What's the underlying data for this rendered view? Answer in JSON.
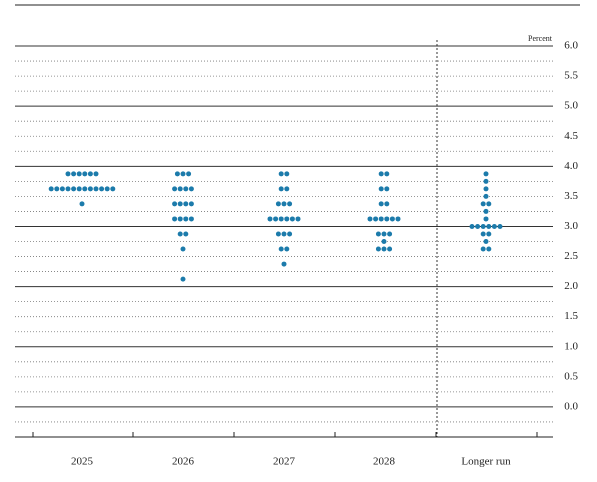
{
  "chart_data": {
    "type": "dotplot",
    "y_unit_label": "Percent",
    "categories": [
      "2025",
      "2026",
      "2027",
      "2028",
      "Longer run"
    ],
    "color": "#1c7bab",
    "values": [
      [
        3.875,
        3.875,
        3.875,
        3.875,
        3.875,
        3.875,
        3.625,
        3.625,
        3.625,
        3.625,
        3.625,
        3.625,
        3.625,
        3.625,
        3.625,
        3.625,
        3.625,
        3.625,
        3.375
      ],
      [
        3.875,
        3.875,
        3.875,
        3.625,
        3.625,
        3.625,
        3.625,
        3.375,
        3.375,
        3.375,
        3.375,
        3.125,
        3.125,
        3.125,
        3.125,
        2.875,
        2.875,
        2.625,
        2.125
      ],
      [
        3.875,
        3.875,
        3.625,
        3.625,
        3.375,
        3.375,
        3.375,
        3.125,
        3.125,
        3.125,
        3.125,
        3.125,
        3.125,
        2.875,
        2.875,
        2.875,
        2.625,
        2.625,
        2.375
      ],
      [
        3.875,
        3.875,
        3.625,
        3.625,
        3.375,
        3.375,
        3.125,
        3.125,
        3.125,
        3.125,
        3.125,
        3.125,
        2.875,
        2.875,
        2.875,
        2.75,
        2.625,
        2.625,
        2.625
      ],
      [
        3.875,
        3.75,
        3.625,
        3.5,
        3.375,
        3.375,
        3.25,
        3.125,
        3,
        3,
        3,
        3,
        3,
        3,
        2.875,
        2.875,
        2.75,
        2.625,
        2.625
      ]
    ],
    "ylim": [
      -0.5,
      6.1
    ],
    "yticks": [
      {
        "value": 0,
        "label": "0.0"
      },
      {
        "value": 0.5,
        "label": "0.5"
      },
      {
        "value": 1,
        "label": "1.0"
      },
      {
        "value": 1.5,
        "label": "1.5"
      },
      {
        "value": 2,
        "label": "2.0"
      },
      {
        "value": 2.5,
        "label": "2.5"
      },
      {
        "value": 3,
        "label": "3.0"
      },
      {
        "value": 3.5,
        "label": "3.5"
      },
      {
        "value": 4,
        "label": "4.0"
      },
      {
        "value": 4.5,
        "label": "4.5"
      },
      {
        "value": 5,
        "label": "5.0"
      },
      {
        "value": 5.5,
        "label": "5.5"
      },
      {
        "value": 6,
        "label": "6.0"
      }
    ],
    "yminorticks": [
      -0.25,
      0.25,
      0.75,
      1.25,
      1.75,
      2.25,
      2.75,
      3.25,
      3.75,
      4.25,
      4.75,
      5.25,
      5.75
    ],
    "grid": true
  }
}
